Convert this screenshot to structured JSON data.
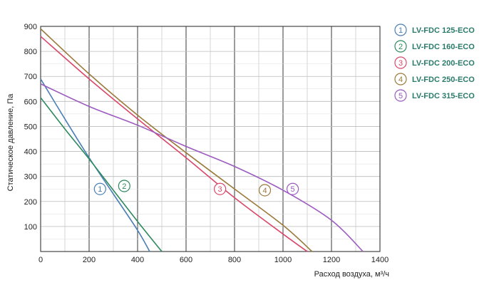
{
  "chart_data": {
    "type": "line",
    "xlabel": "Расход воздуха, м³/ч",
    "ylabel": "Статическое давление, Па",
    "xlim": [
      0,
      1400
    ],
    "ylim": [
      0,
      900
    ],
    "x_ticks": [
      "0",
      "200",
      "400",
      "600",
      "800",
      "1000",
      "1200",
      "1400"
    ],
    "y_ticks": [
      "100",
      "200",
      "300",
      "400",
      "500",
      "600",
      "700",
      "800",
      "900"
    ],
    "grid": true,
    "legend_position": "right",
    "series": [
      {
        "id": "1",
        "name": "LV-FDC 125-ECO",
        "color": "#4a7fb5",
        "x": [
          0,
          100,
          200,
          300,
          400,
          450
        ],
        "y": [
          690,
          530,
          375,
          230,
          85,
          0
        ],
        "marker": {
          "label": "1",
          "x": 245,
          "y": 250
        }
      },
      {
        "id": "2",
        "name": "LV-FDC 160-ECO",
        "color": "#2e8a5e",
        "x": [
          0,
          100,
          200,
          300,
          400,
          500
        ],
        "y": [
          615,
          490,
          370,
          245,
          120,
          0
        ],
        "marker": {
          "label": "2",
          "x": 345,
          "y": 262
        }
      },
      {
        "id": "3",
        "name": "LV-FDC 200-ECO",
        "color": "#d9476a",
        "x": [
          0,
          200,
          400,
          600,
          800,
          1000,
          1100
        ],
        "y": [
          860,
          690,
          530,
          375,
          215,
          70,
          0
        ],
        "marker": {
          "label": "3",
          "x": 740,
          "y": 250
        }
      },
      {
        "id": "4",
        "name": "LV-FDC 250-ECO",
        "color": "#9a7a3a",
        "x": [
          0,
          200,
          400,
          600,
          800,
          1000,
          1120
        ],
        "y": [
          890,
          710,
          545,
          395,
          250,
          105,
          0
        ],
        "marker": {
          "label": "4",
          "x": 925,
          "y": 245
        }
      },
      {
        "id": "5",
        "name": "LV-FDC 315-ECO",
        "color": "#9b5bbf",
        "x": [
          0,
          200,
          400,
          600,
          800,
          1000,
          1200,
          1330
        ],
        "y": [
          670,
          580,
          505,
          420,
          340,
          245,
          125,
          0
        ],
        "marker": {
          "label": "5",
          "x": 1040,
          "y": 250
        }
      }
    ]
  },
  "colors": {
    "axis": "#222222",
    "grid_minor": "#bbbbbb",
    "grid_major": "#222222",
    "legend_text": "#2a7a6a"
  }
}
